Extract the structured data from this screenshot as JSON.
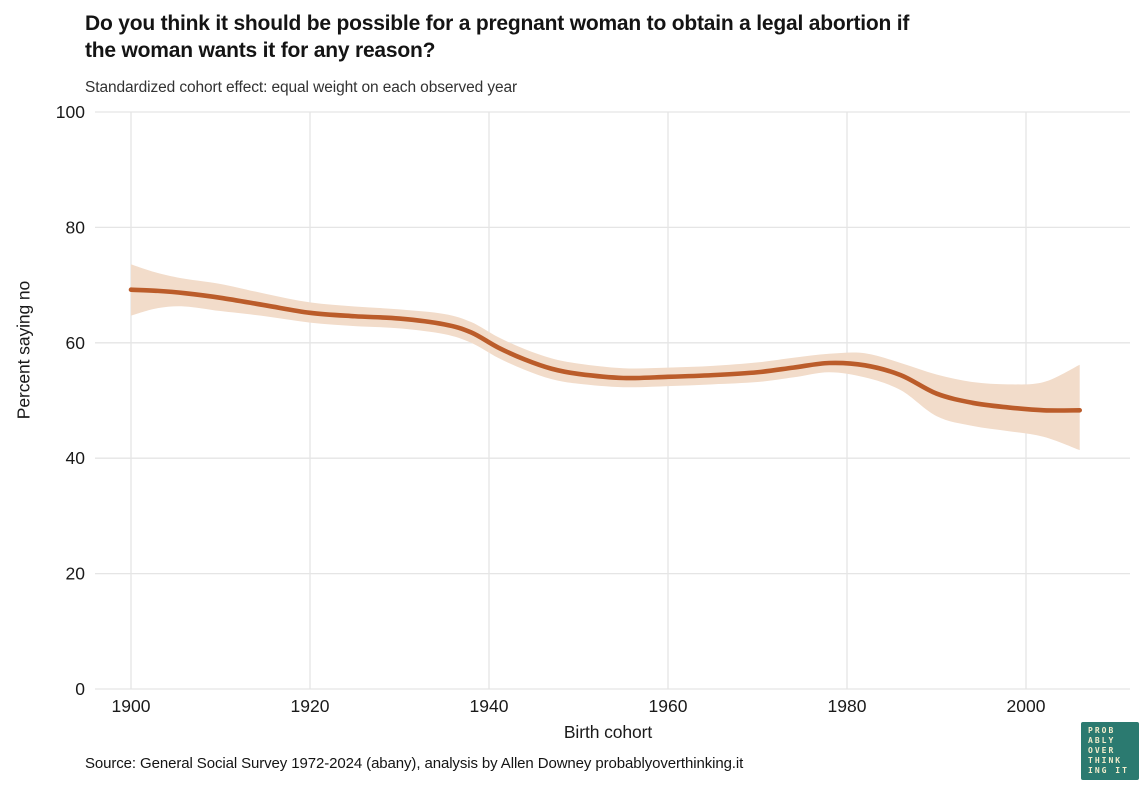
{
  "header": {
    "title_line1": "Do you think it should be possible for a pregnant woman to obtain a legal abortion if",
    "title_line2": "the woman wants it for any reason?",
    "subtitle": "Standardized cohort effect: equal weight on each observed year"
  },
  "footer": {
    "source": "Source: General Social Survey 1972-2024 (abany), analysis by Allen Downey probablyoverthinking.it"
  },
  "logo": {
    "lines": [
      "PROB",
      "ABLY",
      "OVER",
      "THINK",
      "ING IT"
    ],
    "bg_color": "#2b7a70",
    "text_color": "#f5eecd"
  },
  "chart_data": {
    "type": "line",
    "title": "Do you think it should be possible for a pregnant woman to obtain a legal abortion if the woman wants it for any reason?",
    "subtitle": "Standardized cohort effect: equal weight on each observed year",
    "xlabel": "Birth cohort",
    "ylabel": "Percent saying no",
    "xlim": [
      1896,
      2012
    ],
    "ylim": [
      0,
      100
    ],
    "xticks": [
      1900,
      1920,
      1940,
      1960,
      1980,
      2000
    ],
    "yticks": [
      0,
      20,
      40,
      60,
      80,
      100
    ],
    "grid": true,
    "legend": "none",
    "line_color": "#bb5c2a",
    "band_color": "#f2dcca",
    "grid_color": "#e5e5e5",
    "series": [
      {
        "name": "Percent saying no (smoothed cohort effect with confidence band)",
        "x": [
          1900,
          1903,
          1906,
          1910,
          1915,
          1920,
          1925,
          1930,
          1935,
          1938,
          1941,
          1944,
          1947,
          1950,
          1955,
          1960,
          1965,
          1970,
          1974,
          1978,
          1982,
          1986,
          1990,
          1994,
          1998,
          2002,
          2006
        ],
        "y": [
          69.2,
          69.0,
          68.6,
          67.8,
          66.5,
          65.2,
          64.6,
          64.2,
          63.2,
          61.8,
          59.2,
          57.1,
          55.5,
          54.6,
          53.9,
          54.1,
          54.4,
          54.9,
          55.7,
          56.5,
          56.1,
          54.4,
          51.2,
          49.6,
          48.8,
          48.3,
          48.3
        ],
        "ci_lower": [
          64.7,
          66.0,
          66.3,
          65.5,
          64.6,
          63.5,
          62.9,
          62.5,
          61.5,
          60.0,
          57.4,
          55.3,
          53.7,
          52.9,
          52.3,
          52.5,
          52.8,
          53.2,
          54.0,
          54.9,
          54.0,
          51.8,
          47.3,
          45.6,
          44.7,
          43.7,
          41.4
        ],
        "ci_upper": [
          73.6,
          72.1,
          71.1,
          70.2,
          68.5,
          67.0,
          66.3,
          65.8,
          65.0,
          63.6,
          61.0,
          58.9,
          57.3,
          56.4,
          55.6,
          55.7,
          56.0,
          56.6,
          57.4,
          58.1,
          58.2,
          56.5,
          54.5,
          53.2,
          52.8,
          53.2,
          56.2
        ]
      }
    ]
  }
}
